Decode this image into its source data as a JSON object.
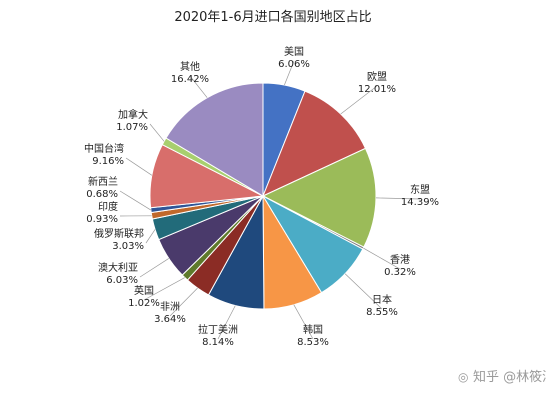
{
  "chart_data": {
    "type": "pie",
    "title": "2020年1-6月进口各国别地区占比",
    "slices": [
      {
        "name": "美国",
        "label": "6.06%",
        "value": 6.06,
        "color": "#4472C4"
      },
      {
        "name": "欧盟",
        "label": "12.01%",
        "value": 12.01,
        "color": "#C0504D"
      },
      {
        "name": "东盟",
        "label": "14.39%",
        "value": 14.39,
        "color": "#9BBB59"
      },
      {
        "name": "香港",
        "label": "0.32%",
        "value": 0.32,
        "color": "#7F7F7F"
      },
      {
        "name": "日本",
        "label": "8.55%",
        "value": 8.55,
        "color": "#4BACC6"
      },
      {
        "name": "韩国",
        "label": "8.53%",
        "value": 8.53,
        "color": "#F79646"
      },
      {
        "name": "拉丁美洲",
        "label": "8.14%",
        "value": 8.14,
        "color": "#1F497D"
      },
      {
        "name": "非洲",
        "label": "3.64%",
        "value": 3.64,
        "color": "#8B2C25"
      },
      {
        "name": "英国",
        "label": "1.02%",
        "value": 1.02,
        "color": "#5E7A2B"
      },
      {
        "name": "澳大利亚",
        "label": "6.03%",
        "value": 6.03,
        "color": "#4A3A6B"
      },
      {
        "name": "俄罗斯联邦",
        "label": "3.03%",
        "value": 3.03,
        "color": "#226B7A"
      },
      {
        "name": "印度",
        "label": "0.93%",
        "value": 0.93,
        "color": "#C0682B"
      },
      {
        "name": "新西兰",
        "label": "0.68%",
        "value": 0.68,
        "color": "#2F5597"
      },
      {
        "name": "中国台湾",
        "label": "9.16%",
        "value": 9.16,
        "color": "#D86E6B"
      },
      {
        "name": "加拿大",
        "label": "1.07%",
        "value": 1.07,
        "color": "#A8CF6E"
      },
      {
        "name": "其他",
        "label": "16.42%",
        "value": 16.42,
        "color": "#9A8BC1"
      }
    ]
  },
  "watermark": {
    "text": "知乎 @林筱涵",
    "icon": "camera-icon"
  }
}
